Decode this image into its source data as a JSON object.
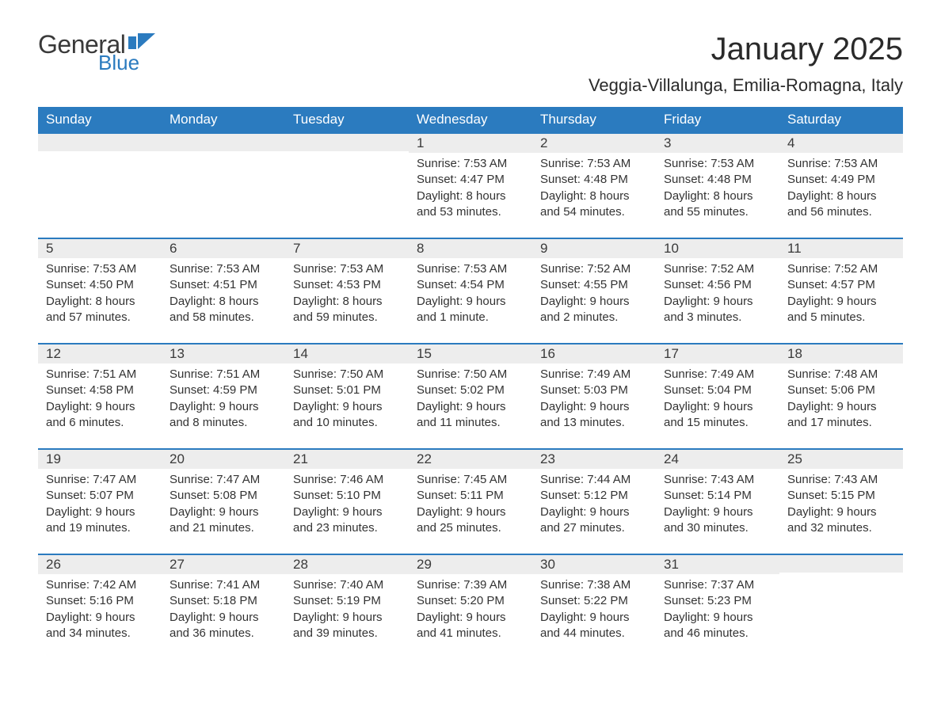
{
  "brand": {
    "word1": "General",
    "word2": "Blue",
    "flag_color": "#2b7bbf"
  },
  "title": "January 2025",
  "location": "Veggia-Villalunga, Emilia-Romagna, Italy",
  "colors": {
    "header_bg": "#2b7bbf",
    "header_text": "#ffffff",
    "daynum_bg": "#ededed",
    "row_border": "#2b7bbf",
    "body_text": "#333333",
    "page_bg": "#ffffff"
  },
  "typography": {
    "title_fontsize": 40,
    "location_fontsize": 22,
    "header_fontsize": 17,
    "daynum_fontsize": 17,
    "body_fontsize": 15,
    "font_family": "Arial"
  },
  "day_headers": [
    "Sunday",
    "Monday",
    "Tuesday",
    "Wednesday",
    "Thursday",
    "Friday",
    "Saturday"
  ],
  "weeks": [
    [
      {
        "day": "",
        "lines": []
      },
      {
        "day": "",
        "lines": []
      },
      {
        "day": "",
        "lines": []
      },
      {
        "day": "1",
        "lines": [
          "Sunrise: 7:53 AM",
          "Sunset: 4:47 PM",
          "Daylight: 8 hours and 53 minutes."
        ]
      },
      {
        "day": "2",
        "lines": [
          "Sunrise: 7:53 AM",
          "Sunset: 4:48 PM",
          "Daylight: 8 hours and 54 minutes."
        ]
      },
      {
        "day": "3",
        "lines": [
          "Sunrise: 7:53 AM",
          "Sunset: 4:48 PM",
          "Daylight: 8 hours and 55 minutes."
        ]
      },
      {
        "day": "4",
        "lines": [
          "Sunrise: 7:53 AM",
          "Sunset: 4:49 PM",
          "Daylight: 8 hours and 56 minutes."
        ]
      }
    ],
    [
      {
        "day": "5",
        "lines": [
          "Sunrise: 7:53 AM",
          "Sunset: 4:50 PM",
          "Daylight: 8 hours and 57 minutes."
        ]
      },
      {
        "day": "6",
        "lines": [
          "Sunrise: 7:53 AM",
          "Sunset: 4:51 PM",
          "Daylight: 8 hours and 58 minutes."
        ]
      },
      {
        "day": "7",
        "lines": [
          "Sunrise: 7:53 AM",
          "Sunset: 4:53 PM",
          "Daylight: 8 hours and 59 minutes."
        ]
      },
      {
        "day": "8",
        "lines": [
          "Sunrise: 7:53 AM",
          "Sunset: 4:54 PM",
          "Daylight: 9 hours and 1 minute."
        ]
      },
      {
        "day": "9",
        "lines": [
          "Sunrise: 7:52 AM",
          "Sunset: 4:55 PM",
          "Daylight: 9 hours and 2 minutes."
        ]
      },
      {
        "day": "10",
        "lines": [
          "Sunrise: 7:52 AM",
          "Sunset: 4:56 PM",
          "Daylight: 9 hours and 3 minutes."
        ]
      },
      {
        "day": "11",
        "lines": [
          "Sunrise: 7:52 AM",
          "Sunset: 4:57 PM",
          "Daylight: 9 hours and 5 minutes."
        ]
      }
    ],
    [
      {
        "day": "12",
        "lines": [
          "Sunrise: 7:51 AM",
          "Sunset: 4:58 PM",
          "Daylight: 9 hours and 6 minutes."
        ]
      },
      {
        "day": "13",
        "lines": [
          "Sunrise: 7:51 AM",
          "Sunset: 4:59 PM",
          "Daylight: 9 hours and 8 minutes."
        ]
      },
      {
        "day": "14",
        "lines": [
          "Sunrise: 7:50 AM",
          "Sunset: 5:01 PM",
          "Daylight: 9 hours and 10 minutes."
        ]
      },
      {
        "day": "15",
        "lines": [
          "Sunrise: 7:50 AM",
          "Sunset: 5:02 PM",
          "Daylight: 9 hours and 11 minutes."
        ]
      },
      {
        "day": "16",
        "lines": [
          "Sunrise: 7:49 AM",
          "Sunset: 5:03 PM",
          "Daylight: 9 hours and 13 minutes."
        ]
      },
      {
        "day": "17",
        "lines": [
          "Sunrise: 7:49 AM",
          "Sunset: 5:04 PM",
          "Daylight: 9 hours and 15 minutes."
        ]
      },
      {
        "day": "18",
        "lines": [
          "Sunrise: 7:48 AM",
          "Sunset: 5:06 PM",
          "Daylight: 9 hours and 17 minutes."
        ]
      }
    ],
    [
      {
        "day": "19",
        "lines": [
          "Sunrise: 7:47 AM",
          "Sunset: 5:07 PM",
          "Daylight: 9 hours and 19 minutes."
        ]
      },
      {
        "day": "20",
        "lines": [
          "Sunrise: 7:47 AM",
          "Sunset: 5:08 PM",
          "Daylight: 9 hours and 21 minutes."
        ]
      },
      {
        "day": "21",
        "lines": [
          "Sunrise: 7:46 AM",
          "Sunset: 5:10 PM",
          "Daylight: 9 hours and 23 minutes."
        ]
      },
      {
        "day": "22",
        "lines": [
          "Sunrise: 7:45 AM",
          "Sunset: 5:11 PM",
          "Daylight: 9 hours and 25 minutes."
        ]
      },
      {
        "day": "23",
        "lines": [
          "Sunrise: 7:44 AM",
          "Sunset: 5:12 PM",
          "Daylight: 9 hours and 27 minutes."
        ]
      },
      {
        "day": "24",
        "lines": [
          "Sunrise: 7:43 AM",
          "Sunset: 5:14 PM",
          "Daylight: 9 hours and 30 minutes."
        ]
      },
      {
        "day": "25",
        "lines": [
          "Sunrise: 7:43 AM",
          "Sunset: 5:15 PM",
          "Daylight: 9 hours and 32 minutes."
        ]
      }
    ],
    [
      {
        "day": "26",
        "lines": [
          "Sunrise: 7:42 AM",
          "Sunset: 5:16 PM",
          "Daylight: 9 hours and 34 minutes."
        ]
      },
      {
        "day": "27",
        "lines": [
          "Sunrise: 7:41 AM",
          "Sunset: 5:18 PM",
          "Daylight: 9 hours and 36 minutes."
        ]
      },
      {
        "day": "28",
        "lines": [
          "Sunrise: 7:40 AM",
          "Sunset: 5:19 PM",
          "Daylight: 9 hours and 39 minutes."
        ]
      },
      {
        "day": "29",
        "lines": [
          "Sunrise: 7:39 AM",
          "Sunset: 5:20 PM",
          "Daylight: 9 hours and 41 minutes."
        ]
      },
      {
        "day": "30",
        "lines": [
          "Sunrise: 7:38 AM",
          "Sunset: 5:22 PM",
          "Daylight: 9 hours and 44 minutes."
        ]
      },
      {
        "day": "31",
        "lines": [
          "Sunrise: 7:37 AM",
          "Sunset: 5:23 PM",
          "Daylight: 9 hours and 46 minutes."
        ]
      },
      {
        "day": "",
        "lines": []
      }
    ]
  ]
}
